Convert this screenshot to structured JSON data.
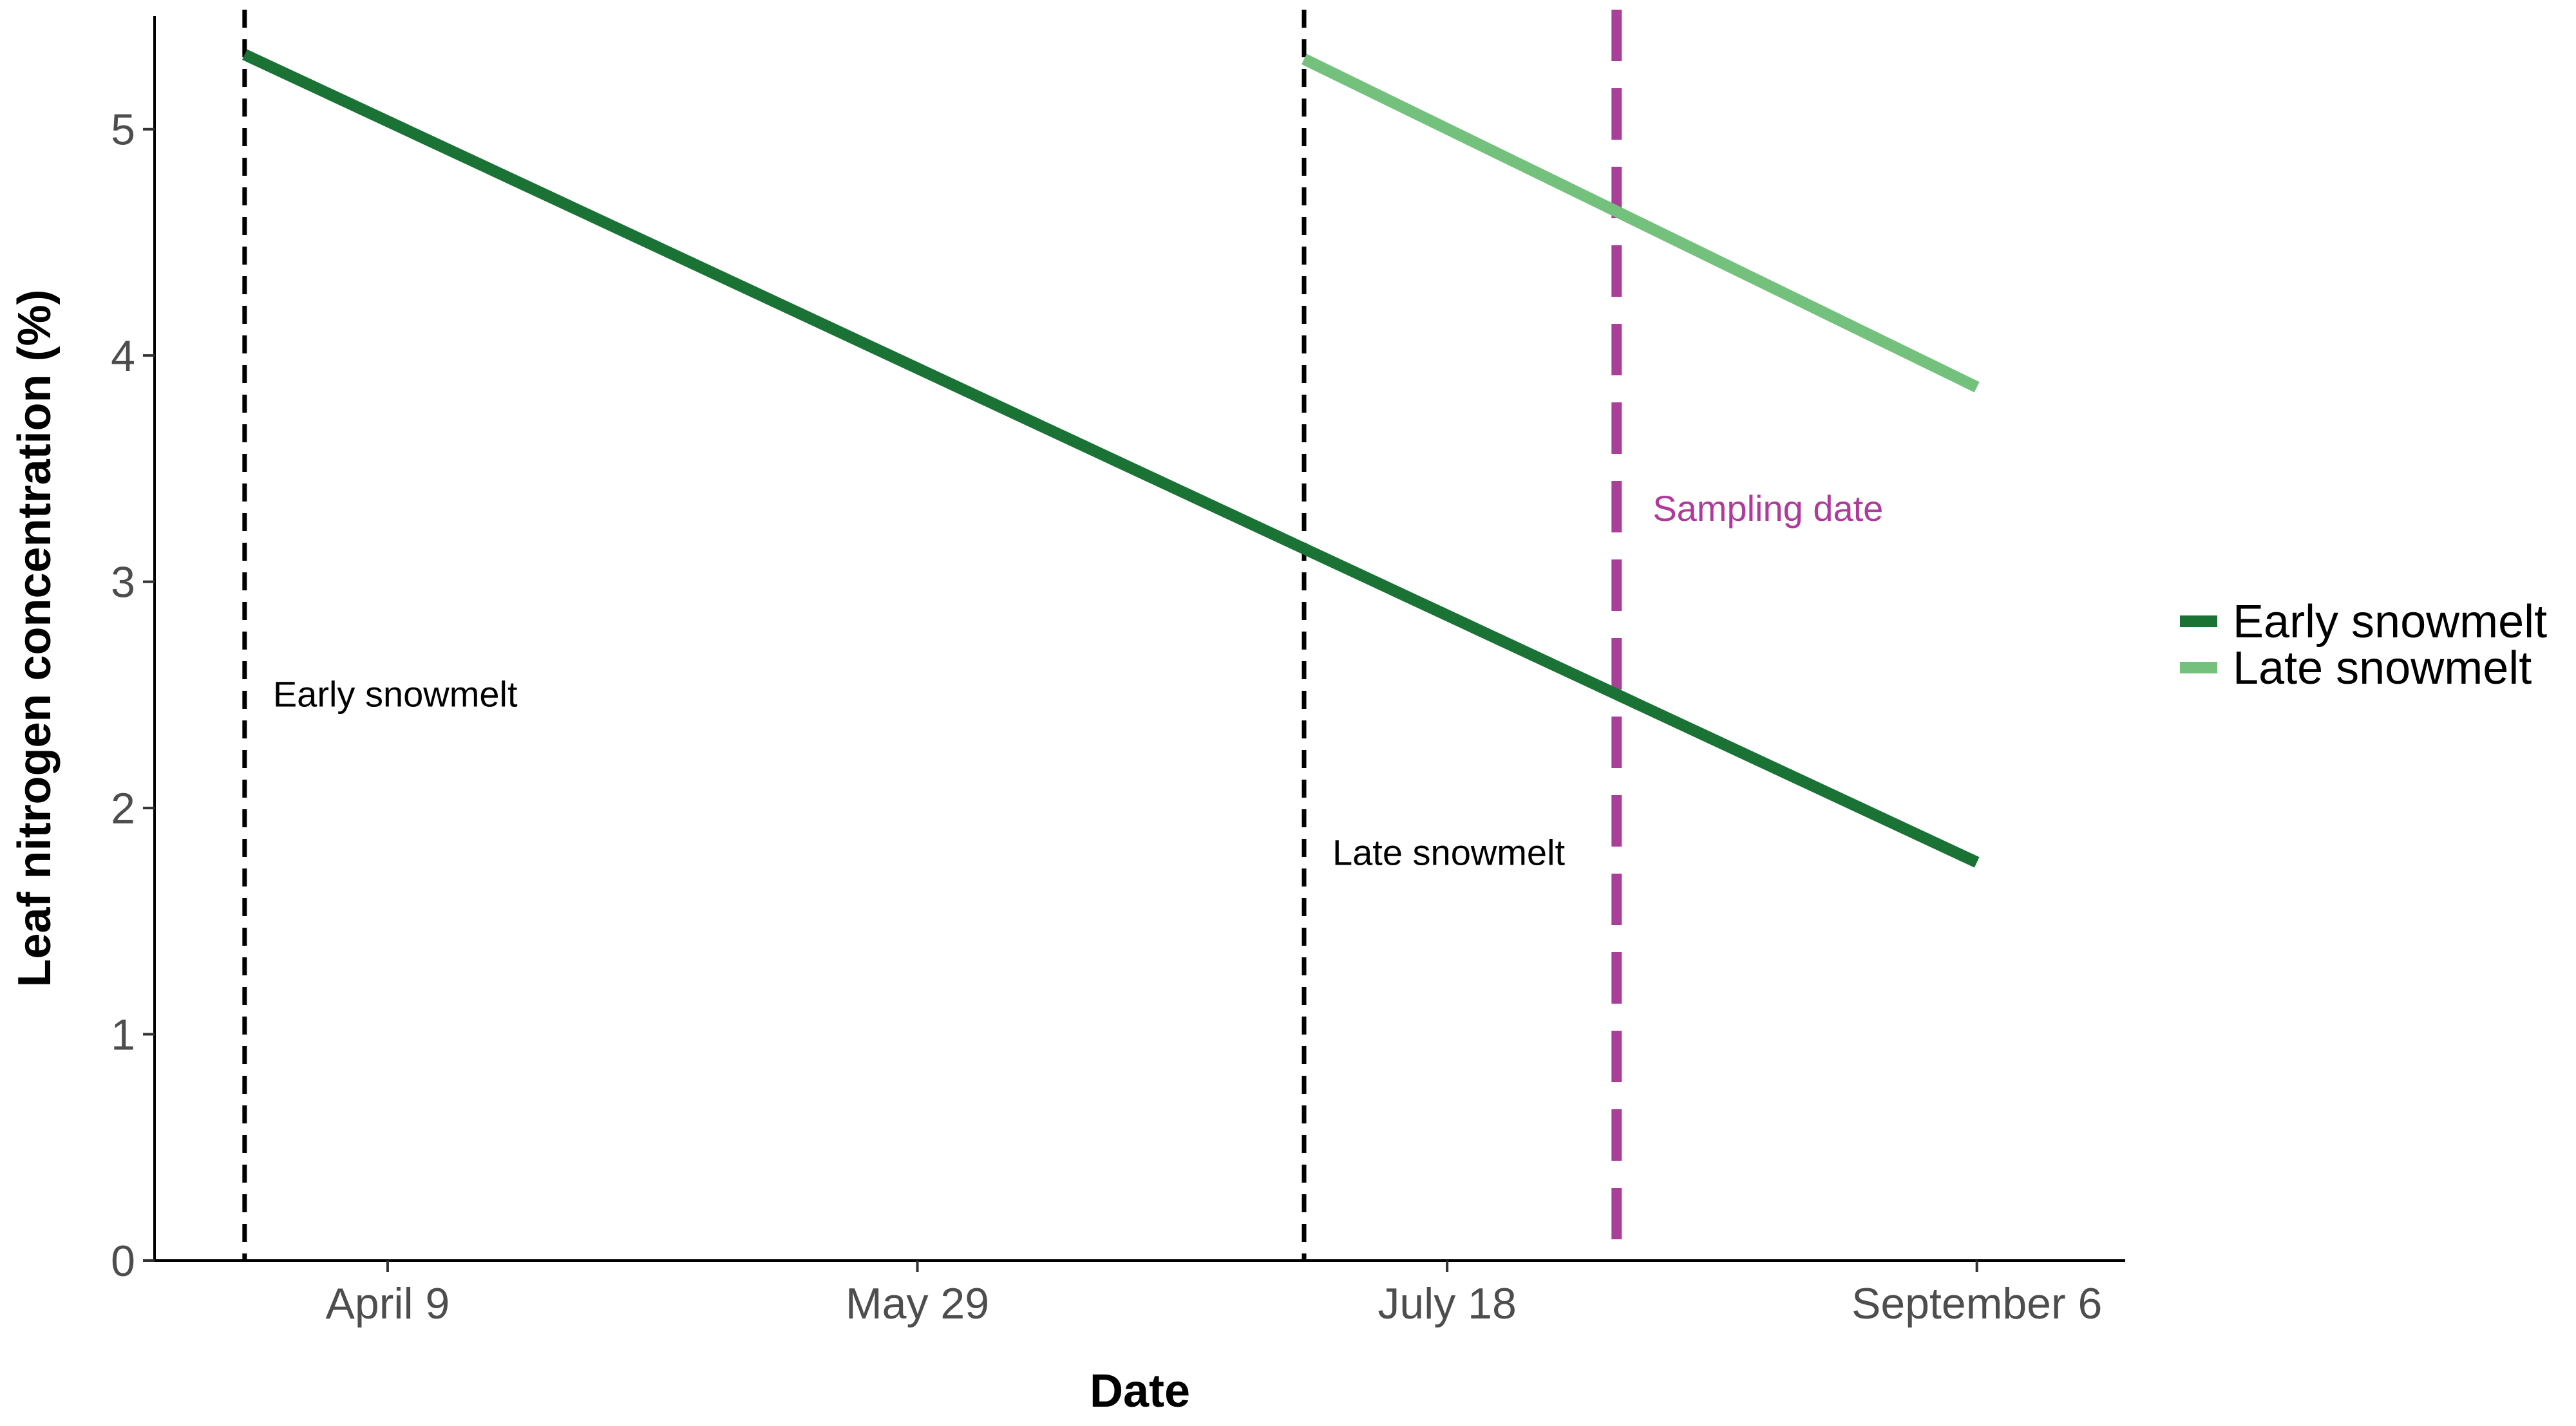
{
  "chart_data": {
    "type": "line",
    "title": "",
    "xlabel": "Date",
    "ylabel": "Leaf nitrogen concentration (%)",
    "x_ticks": [
      "April 9",
      "May 29",
      "July 18",
      "September 6"
    ],
    "x_tick_values": [
      99,
      149,
      199,
      249
    ],
    "x_range": [
      77,
      263
    ],
    "y_ticks": [
      "0",
      "1",
      "2",
      "3",
      "4",
      "5"
    ],
    "y_tick_values": [
      0,
      1,
      2,
      3,
      4,
      5
    ],
    "ylim": [
      0,
      5.5
    ],
    "grid": false,
    "legend_position": "right",
    "series": [
      {
        "name": "Early snowmelt",
        "color": "#1a7335",
        "points": [
          [
            85.5,
            5.33
          ],
          [
            249,
            1.76
          ]
        ]
      },
      {
        "name": "Late snowmelt",
        "color": "#74c17e",
        "points": [
          [
            185.5,
            5.31
          ],
          [
            249,
            3.86
          ]
        ]
      }
    ],
    "annotations": [
      {
        "label": "Early snowmelt",
        "x": 85.5,
        "label_y": 2.5,
        "color": "#000000",
        "line_color": "#000000",
        "style": "black-dashed"
      },
      {
        "label": "Late snowmelt",
        "x": 185.5,
        "label_y": 1.8,
        "color": "#000000",
        "line_color": "#000000",
        "style": "black-dashed"
      },
      {
        "label": "Sampling date",
        "x": 215,
        "label_y": 3.32,
        "color": "#b03a9b",
        "line_color": "#a8409a",
        "style": "purple-dashed"
      }
    ]
  }
}
